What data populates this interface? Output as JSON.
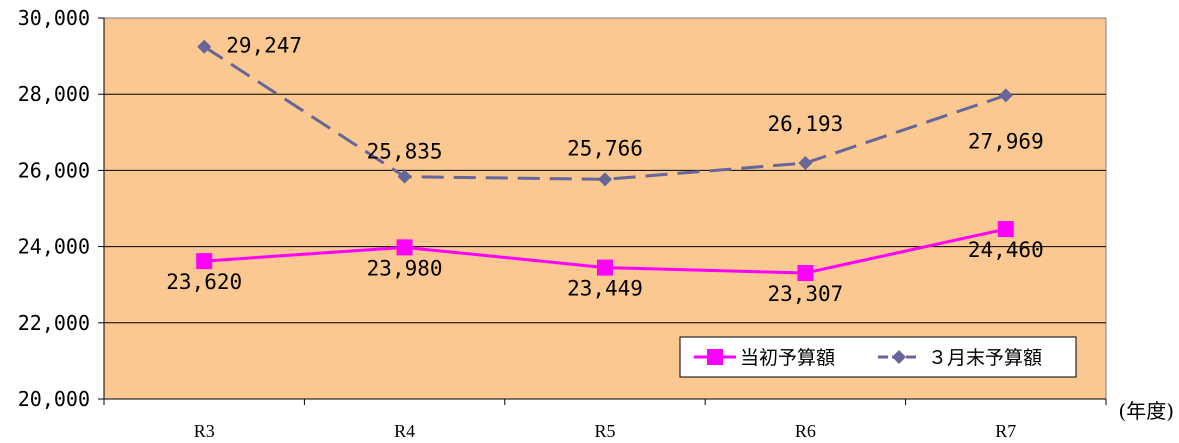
{
  "chart_data": {
    "type": "line",
    "categories": [
      "R3",
      "R4",
      "R5",
      "R6",
      "R7"
    ],
    "x_unit_label": "(年度)",
    "ylim": [
      20000,
      30000
    ],
    "yticks": [
      20000,
      22000,
      24000,
      26000,
      28000,
      30000
    ],
    "ytick_labels": [
      "20,000",
      "22,000",
      "24,000",
      "26,000",
      "28,000",
      "30,000"
    ],
    "grid": true,
    "legend_position": "bottom-right",
    "series": [
      {
        "name": "当初予算額",
        "values": [
          23620,
          23980,
          23449,
          23307,
          24460
        ],
        "labels": [
          "23,620",
          "23,980",
          "23,449",
          "23,307",
          "24,460"
        ],
        "color": "#ff00ff",
        "marker": "square",
        "line_style": "solid"
      },
      {
        "name": "３月末予算額",
        "values": [
          29247,
          25835,
          25766,
          26193,
          27969
        ],
        "labels": [
          "29,247",
          "25,835",
          "25,766",
          "26,193",
          "27,969"
        ],
        "color": "#666699",
        "marker": "diamond",
        "line_style": "dashed"
      }
    ],
    "plot_background": "#fac890"
  }
}
